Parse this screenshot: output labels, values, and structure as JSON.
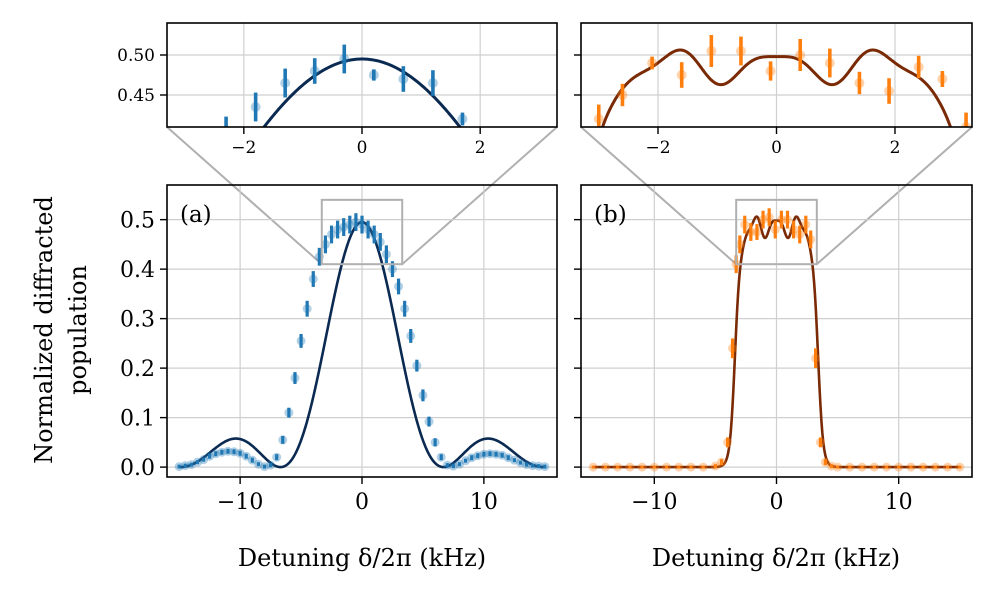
{
  "colors": {
    "blue_points": "#1f77b4",
    "blue_fit": "#0b2a52",
    "orange_points": "#ff7f0e",
    "orange_fit": "#7a2a05",
    "grid": "#cfcfcf",
    "zoom_box": "#b0b0b0"
  },
  "chart_data": [
    {
      "id": "a",
      "type": "scatter",
      "panel_label": "(a)",
      "xlabel": "Detuning δ/2π (kHz)",
      "ylabel_lines": [
        "Normalized diffracted",
        "population"
      ],
      "xlim": [
        -16,
        16
      ],
      "ylim": [
        -0.02,
        0.57
      ],
      "xticks": [
        -10,
        0,
        10
      ],
      "xtick_labels": [
        "−10",
        "0",
        "10"
      ],
      "yticks": [
        0.0,
        0.1,
        0.2,
        0.3,
        0.4,
        0.5
      ],
      "ytick_labels": [
        "0.0",
        "0.1",
        "0.2",
        "0.3",
        "0.4",
        "0.5"
      ],
      "grid": true,
      "fit": "sinc-squared (Rabi lineshape)",
      "zoom_region": {
        "x": [
          -3.3,
          3.3
        ],
        "y": [
          0.41,
          0.54
        ]
      },
      "points": {
        "x": [
          -15.0,
          -14.5,
          -14.0,
          -13.5,
          -13.0,
          -12.5,
          -12.0,
          -11.5,
          -11.0,
          -10.5,
          -10.0,
          -9.5,
          -9.0,
          -8.5,
          -8.0,
          -7.5,
          -7.0,
          -6.5,
          -6.0,
          -5.5,
          -5.0,
          -4.5,
          -4.0,
          -3.5,
          -3.0,
          -2.5,
          -2.0,
          -1.5,
          -1.0,
          -0.5,
          0.0,
          0.5,
          1.0,
          1.5,
          2.0,
          2.5,
          3.0,
          3.5,
          4.0,
          4.5,
          5.0,
          5.5,
          6.0,
          6.5,
          7.0,
          7.5,
          8.0,
          8.5,
          9.0,
          9.5,
          10.0,
          10.5,
          11.0,
          11.5,
          12.0,
          12.5,
          13.0,
          13.5,
          14.0,
          14.5,
          15.0
        ],
        "y": [
          0.001,
          0.003,
          0.005,
          0.01,
          0.015,
          0.022,
          0.027,
          0.03,
          0.032,
          0.031,
          0.028,
          0.022,
          0.014,
          0.006,
          0.001,
          0.004,
          0.02,
          0.055,
          0.11,
          0.18,
          0.255,
          0.32,
          0.38,
          0.425,
          0.45,
          0.47,
          0.48,
          0.485,
          0.49,
          0.495,
          0.49,
          0.48,
          0.47,
          0.455,
          0.43,
          0.4,
          0.365,
          0.32,
          0.265,
          0.205,
          0.145,
          0.092,
          0.05,
          0.02,
          0.004,
          0.002,
          0.006,
          0.013,
          0.019,
          0.023,
          0.026,
          0.027,
          0.026,
          0.024,
          0.019,
          0.014,
          0.009,
          0.005,
          0.003,
          0.002,
          0.001
        ],
        "yerr": [
          0.004,
          0.004,
          0.004,
          0.004,
          0.004,
          0.005,
          0.005,
          0.005,
          0.005,
          0.005,
          0.005,
          0.005,
          0.005,
          0.004,
          0.004,
          0.004,
          0.006,
          0.008,
          0.01,
          0.012,
          0.014,
          0.016,
          0.016,
          0.018,
          0.018,
          0.018,
          0.018,
          0.018,
          0.018,
          0.018,
          0.018,
          0.018,
          0.018,
          0.018,
          0.018,
          0.016,
          0.016,
          0.016,
          0.014,
          0.012,
          0.012,
          0.01,
          0.008,
          0.006,
          0.004,
          0.004,
          0.004,
          0.004,
          0.005,
          0.005,
          0.005,
          0.005,
          0.005,
          0.005,
          0.005,
          0.004,
          0.004,
          0.004,
          0.004,
          0.004,
          0.004
        ]
      }
    },
    {
      "id": "b",
      "type": "scatter",
      "panel_label": "(b)",
      "xlabel": "Detuning δ/2π (kHz)",
      "xlim": [
        -16,
        16
      ],
      "ylim": [
        -0.02,
        0.57
      ],
      "xticks": [
        -10,
        0,
        10
      ],
      "xtick_labels": [
        "−10",
        "0",
        "10"
      ],
      "yticks": [
        0.0,
        0.1,
        0.2,
        0.3,
        0.4,
        0.5
      ],
      "grid": true,
      "fit": "flat-top (shaped pulse)",
      "zoom_region": {
        "x": [
          -3.3,
          3.3
        ],
        "y": [
          0.41,
          0.54
        ]
      },
      "points": {
        "x": [
          -15.0,
          -14.0,
          -13.0,
          -12.0,
          -11.0,
          -10.0,
          -9.0,
          -8.0,
          -7.0,
          -6.0,
          -5.0,
          -4.5,
          -4.0,
          -3.6,
          -3.3,
          -3.0,
          -2.6,
          -2.1,
          -1.6,
          -1.1,
          -0.6,
          -0.1,
          0.4,
          0.9,
          1.4,
          1.9,
          2.4,
          2.8,
          3.2,
          3.6,
          4.0,
          4.5,
          5.0,
          6.0,
          7.0,
          8.0,
          9.0,
          10.0,
          11.0,
          12.0,
          13.0,
          14.0,
          15.0
        ],
        "y": [
          0.0,
          0.0,
          0.0,
          0.0,
          0.0,
          0.0,
          0.0,
          0.0,
          0.0,
          0.0,
          0.002,
          0.01,
          0.05,
          0.24,
          0.41,
          0.45,
          0.49,
          0.475,
          0.475,
          0.5,
          0.505,
          0.48,
          0.5,
          0.5,
          0.48,
          0.47,
          0.49,
          0.46,
          0.22,
          0.05,
          0.01,
          0.002,
          0.0,
          0.0,
          0.0,
          0.0,
          0.0,
          0.0,
          0.0,
          0.0,
          0.0,
          0.0,
          0.0
        ],
        "yerr": [
          0.003,
          0.003,
          0.003,
          0.003,
          0.003,
          0.003,
          0.003,
          0.003,
          0.003,
          0.003,
          0.004,
          0.006,
          0.01,
          0.02,
          0.018,
          0.018,
          0.018,
          0.018,
          0.016,
          0.018,
          0.018,
          0.018,
          0.018,
          0.018,
          0.018,
          0.018,
          0.018,
          0.018,
          0.02,
          0.01,
          0.006,
          0.004,
          0.003,
          0.003,
          0.003,
          0.003,
          0.003,
          0.003,
          0.003,
          0.003,
          0.003,
          0.003,
          0.003
        ]
      }
    },
    {
      "id": "a-inset",
      "type": "scatter",
      "zooms": "a",
      "xlim": [
        -3.3,
        3.3
      ],
      "ylim": [
        0.41,
        0.54
      ],
      "xticks": [
        -2,
        0,
        2
      ],
      "xtick_labels": [
        "−2",
        "0",
        "2"
      ],
      "yticks": [
        0.45,
        0.5
      ],
      "ytick_labels": [
        "0.45",
        "0.50"
      ],
      "grid": true,
      "points": {
        "x": [
          -2.3,
          -1.8,
          -1.3,
          -0.8,
          -0.3,
          0.2,
          0.7,
          1.2,
          1.7
        ],
        "y": [
          0.405,
          0.435,
          0.465,
          0.48,
          0.495,
          0.475,
          0.47,
          0.465,
          0.42
        ],
        "yerr": [
          0.018,
          0.018,
          0.018,
          0.016,
          0.018,
          0.007,
          0.016,
          0.016,
          0.008
        ]
      }
    },
    {
      "id": "b-inset",
      "type": "scatter",
      "zooms": "b",
      "xlim": [
        -3.3,
        3.3
      ],
      "ylim": [
        0.41,
        0.54
      ],
      "xticks": [
        -2,
        0,
        2
      ],
      "xtick_labels": [
        "−2",
        "0",
        "2"
      ],
      "yticks": [
        0.45,
        0.5
      ],
      "grid": true,
      "points": {
        "x": [
          -3.0,
          -2.6,
          -2.1,
          -1.6,
          -1.1,
          -0.6,
          -0.1,
          0.4,
          0.9,
          1.4,
          1.9,
          2.4,
          2.8,
          3.2
        ],
        "y": [
          0.42,
          0.45,
          0.49,
          0.475,
          0.505,
          0.505,
          0.48,
          0.5,
          0.49,
          0.465,
          0.455,
          0.485,
          0.47,
          0.41
        ],
        "yerr": [
          0.018,
          0.014,
          0.008,
          0.016,
          0.02,
          0.018,
          0.012,
          0.02,
          0.018,
          0.014,
          0.016,
          0.014,
          0.01,
          0.018
        ]
      }
    }
  ]
}
